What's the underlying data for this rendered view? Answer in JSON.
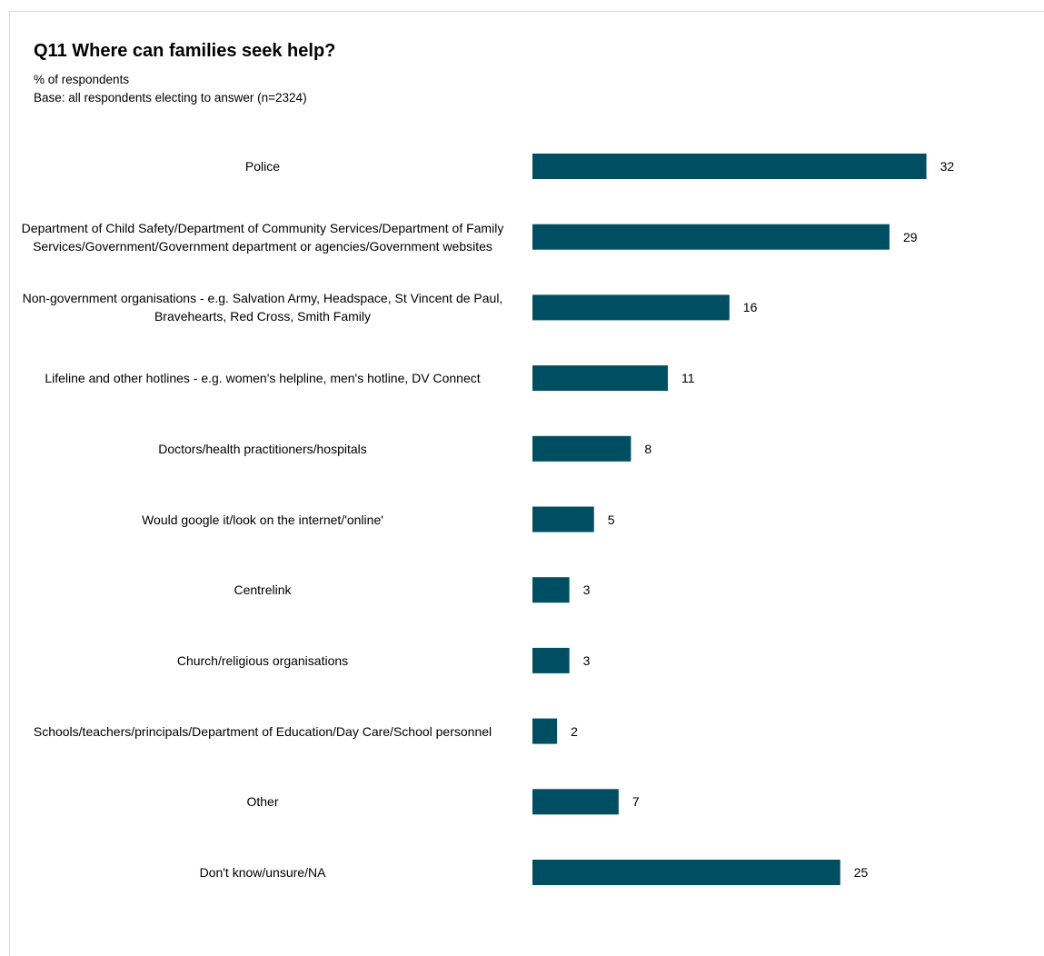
{
  "chart_data": {
    "type": "bar",
    "orientation": "horizontal",
    "title": "Q11 Where can families seek help?",
    "subtitle_lines": [
      "% of respondents",
      "Base: all respondents electing to answer (n=2324)"
    ],
    "categories": [
      "Police",
      "Department of Child Safety/Department of Community Services/Department of Family Services/Government/Government department or agencies/Government websites",
      "Non-government organisations - e.g. Salvation Army, Headspace, St Vincent de Paul, Bravehearts, Red Cross, Smith Family",
      "Lifeline and other hotlines - e.g. women's helpline, men's hotline, DV Connect",
      "Doctors/health practitioners/hospitals",
      "Would google it/look on the internet/'online'",
      "Centrelink",
      "Church/religious organisations",
      "Schools/teachers/principals/Department of Education/Day Care/School personnel",
      "Other",
      "Don't know/unsure/NA"
    ],
    "values": [
      32,
      29,
      16,
      11,
      8,
      5,
      3,
      3,
      2,
      7,
      25
    ],
    "bar_color": "#004e61",
    "grid": false,
    "legend": false
  }
}
